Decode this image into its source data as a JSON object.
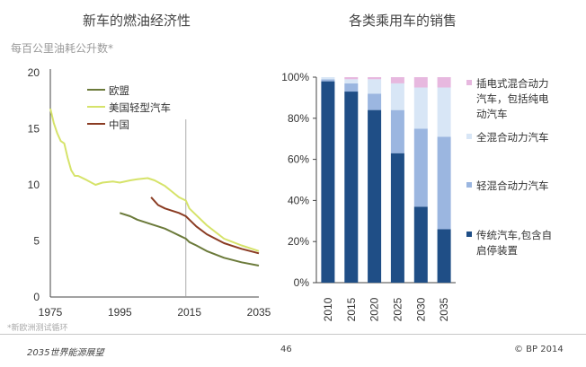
{
  "left_title": "新车的燃油经济性",
  "right_title": "各类乘用车的销售",
  "left_subtitle": "每百公里油耗公升数*",
  "left_footnote": "*新欧洲测试循环",
  "footer": {
    "left": "2035世界能源展望",
    "page": "46",
    "copyright": "© BP 2014"
  },
  "colors": {
    "eu": "#6b7a3a",
    "us": "#d6e36a",
    "cn": "#8a3b22",
    "conventional": "#1f4e86",
    "mild_hybrid": "#9bb6e0",
    "full_hybrid": "#d8e6f6",
    "plugin": "#e7b8df"
  },
  "chart_data": [
    {
      "type": "line",
      "title": "新车的燃油经济性",
      "subtitle": "每百公里油耗公升数*",
      "xlim": [
        1975,
        2035
      ],
      "ylim": [
        0,
        20
      ],
      "xticks": [
        1975,
        1995,
        2015,
        2035
      ],
      "yticks": [
        0,
        5,
        10,
        15,
        20
      ],
      "grid": false,
      "legend": "upper-center",
      "vline": 2014,
      "series": [
        {
          "name": "欧盟",
          "color_key": "eu",
          "x": [
            1995,
            1998,
            2000,
            2002,
            2004,
            2006,
            2008,
            2010,
            2012,
            2014,
            2015,
            2017,
            2020,
            2025,
            2030,
            2035
          ],
          "y": [
            7.5,
            7.2,
            6.9,
            6.7,
            6.5,
            6.3,
            6.1,
            5.8,
            5.5,
            5.2,
            4.9,
            4.6,
            4.1,
            3.5,
            3.1,
            2.8
          ]
        },
        {
          "name": "美国轻型汽车",
          "color_key": "us",
          "x": [
            1975,
            1976,
            1977,
            1978,
            1979,
            1980,
            1981,
            1982,
            1983,
            1985,
            1988,
            1990,
            1993,
            1995,
            1998,
            2000,
            2003,
            2005,
            2008,
            2010,
            2012,
            2014,
            2015,
            2017,
            2020,
            2025,
            2030,
            2035
          ],
          "y": [
            16.8,
            15.5,
            14.6,
            13.9,
            13.7,
            12.4,
            11.3,
            10.8,
            10.8,
            10.5,
            10.0,
            10.2,
            10.3,
            10.2,
            10.4,
            10.5,
            10.6,
            10.4,
            9.9,
            9.4,
            8.9,
            8.6,
            7.9,
            7.3,
            6.4,
            5.2,
            4.6,
            4.1
          ]
        },
        {
          "name": "中国",
          "color_key": "cn",
          "x": [
            2004,
            2006,
            2008,
            2010,
            2012,
            2014,
            2015,
            2017,
            2020,
            2025,
            2030,
            2035
          ],
          "y": [
            8.9,
            8.2,
            7.9,
            7.7,
            7.5,
            7.2,
            6.9,
            6.3,
            5.6,
            4.8,
            4.3,
            3.9
          ]
        }
      ]
    },
    {
      "type": "bar",
      "stacked": true,
      "title": "各类乘用车的销售",
      "categories": [
        "2010",
        "2015",
        "2020",
        "2025",
        "2030",
        "2035"
      ],
      "ylim": [
        0,
        100
      ],
      "yticks": [
        "0%",
        "20%",
        "40%",
        "60%",
        "80%",
        "100%"
      ],
      "grid": false,
      "legend": "right",
      "series": [
        {
          "name": "传统汽车,包含自启停装置",
          "color_key": "conventional",
          "values": [
            98,
            93,
            84,
            63,
            37,
            26
          ]
        },
        {
          "name": "轻混合动力汽车",
          "color_key": "mild_hybrid",
          "values": [
            1,
            4,
            8,
            21,
            38,
            45
          ]
        },
        {
          "name": "全混合动力汽车",
          "color_key": "full_hybrid",
          "values": [
            1,
            2,
            7,
            13,
            20,
            24
          ]
        },
        {
          "name": "插电式混合动力汽车，包括纯电动汽车",
          "color_key": "plugin",
          "values": [
            0,
            1,
            1,
            3,
            5,
            5
          ]
        }
      ],
      "legend_lines": [
        [
          "插电式混合动力",
          "汽车，包括纯电",
          "动汽车"
        ],
        [
          "全混合动力汽车"
        ],
        [
          "轻混合动力汽车"
        ],
        [
          "传统汽车,包含自",
          "启停装置"
        ]
      ]
    }
  ]
}
